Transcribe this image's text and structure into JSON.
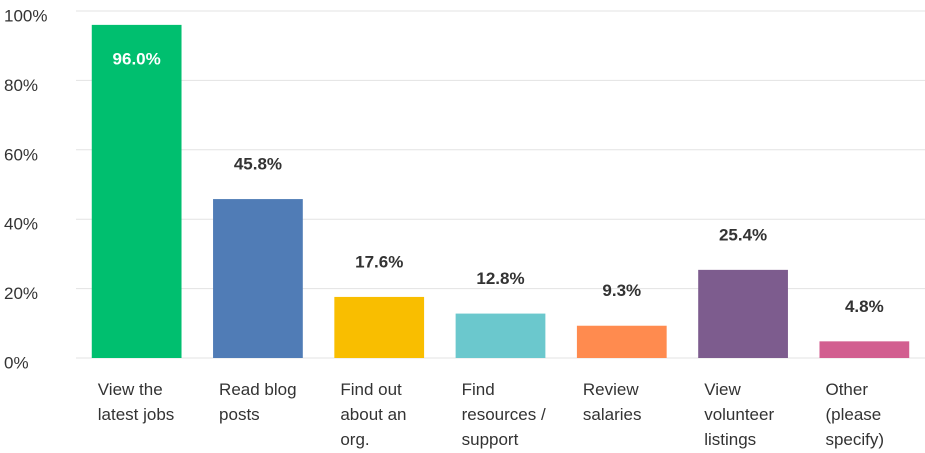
{
  "chart_data": {
    "type": "bar",
    "categories": [
      "View the latest jobs",
      "Read blog posts",
      "Find out about an org.",
      "Find resources / support",
      "Review salaries",
      "View volunteer listings",
      "Other (please specify)"
    ],
    "values": [
      96.0,
      45.8,
      17.6,
      12.8,
      9.3,
      25.4,
      4.8
    ],
    "value_labels": [
      "96.0%",
      "45.8%",
      "17.6%",
      "12.8%",
      "9.3%",
      "25.4%",
      "4.8%"
    ],
    "colors": [
      "#00bf6f",
      "#507cb6",
      "#f9be00",
      "#6bc8cd",
      "#ff8b4f",
      "#7d5c8e",
      "#d25f90"
    ],
    "ylim": [
      0,
      100
    ],
    "yticks": [
      {
        "value": 0,
        "label": "0%"
      },
      {
        "value": 20,
        "label": "20%"
      },
      {
        "value": 40,
        "label": "40%"
      },
      {
        "value": 60,
        "label": "60%"
      },
      {
        "value": 80,
        "label": "80%"
      },
      {
        "value": 100,
        "label": "100%"
      }
    ],
    "grid": true
  }
}
